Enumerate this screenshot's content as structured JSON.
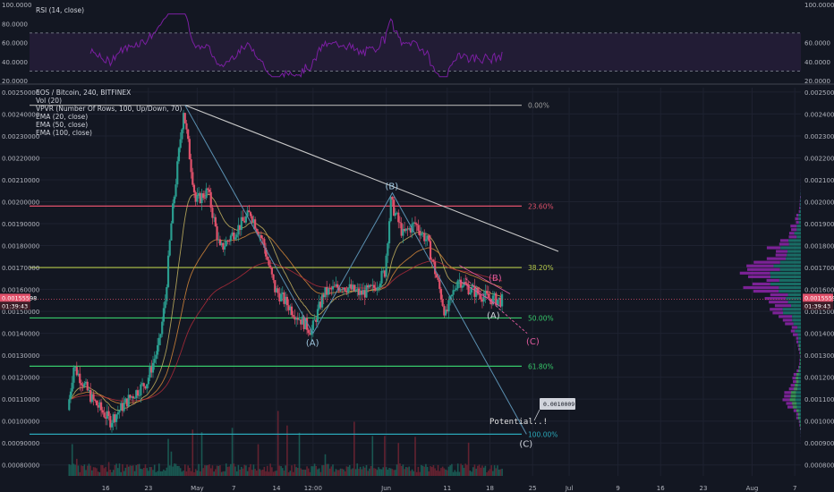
{
  "colors": {
    "background": "#131722",
    "grid": "#1e2230",
    "separator": "#2a2e39",
    "rsi": "#7b1fa2",
    "rsi_band": "#2a1f3d",
    "up": "#2a9d8f",
    "down": "#e0516b",
    "ema20": "#c8b560",
    "ema50": "#d98a3a",
    "ema100": "#b22b3a",
    "trend_white": "#c8c8c8",
    "wave_blue": "#5a8fb0",
    "wave_pink": "#e05a9e",
    "vol_up": "#1b5e57",
    "vol_down": "#6b2432"
  },
  "rsi_panel": {
    "title": "RSI (14, close)",
    "ticks": [
      "100.0000",
      "80.0000",
      "60.0000",
      "40.0000",
      "20.0000"
    ],
    "ticks_right": [
      "100.0000",
      "60.0000",
      "40.0000",
      "20.0000"
    ]
  },
  "main_panel": {
    "legend": [
      "EOS / Bitcoin, 240, BITFINEX",
      "Vol (20)",
      "VPVR (Number Of Rows, 100, Up/Down, 70)",
      "EMA (20, close)",
      "EMA (50, close)",
      "EMA (100, close)"
    ],
    "price_ticks": [
      "0.00250000",
      "0.00240000",
      "0.00230000",
      "0.00220000",
      "0.00210000",
      "0.00200000",
      "0.00190000",
      "0.00180000",
      "0.00170000",
      "0.00160000",
      "0.00150000",
      "0.00140000",
      "0.00130000",
      "0.00120000",
      "0.00110000",
      "0.00100000",
      "0.00090000",
      "0.00080000"
    ],
    "last_price": "0.00155598",
    "countdown": "01:39:43",
    "tooltip_value": "0.00100091",
    "potential_label": "Potential..!"
  },
  "fibonacci": [
    {
      "label": "0.00%",
      "price": 0.00244,
      "color": "#9e9e9e"
    },
    {
      "label": "23.60%",
      "price": 0.00198,
      "color": "#e0516b"
    },
    {
      "label": "38.20%",
      "price": 0.0017,
      "color": "#b5c94b"
    },
    {
      "label": "50.00%",
      "price": 0.00147,
      "color": "#37c96a"
    },
    {
      "label": "61.80%",
      "price": 0.00125,
      "color": "#37c96a"
    },
    {
      "label": "100.00%",
      "price": 0.00094,
      "color": "#2aa7b8"
    }
  ],
  "waves": {
    "blue": [
      {
        "label": "(A)",
        "date": "May 20",
        "price": 0.0014
      },
      {
        "label": "(B)",
        "date": "Jun 2",
        "price": 0.00204
      },
      {
        "label": "(C)",
        "date": "Jun 24",
        "price": 0.00094
      }
    ],
    "pink": [
      {
        "label": "(B)",
        "date": "Jun 17",
        "price": 0.00161
      },
      {
        "label": "(A)",
        "date": "Jun 17",
        "price": 0.0015
      },
      {
        "label": "(C)",
        "date": "Jun 20",
        "price": 0.00138
      }
    ]
  },
  "x_axis": {
    "labels": [
      "16",
      "23",
      "May",
      "7",
      "14",
      "12:00",
      "Jun",
      "11",
      "18",
      "25",
      "Jul",
      "9",
      "16",
      "23",
      "Aug",
      "7"
    ]
  },
  "chart_data": {
    "type": "candlestick",
    "symbol": "EOS / Bitcoin",
    "timeframe": "240",
    "exchange": "BITFINEX",
    "x_start": "Apr 10",
    "x_end": "Jun 20",
    "ylim": [
      0.00075,
      0.00252
    ],
    "key_points": [
      {
        "date": "Apr 10",
        "price": 0.00105
      },
      {
        "date": "Apr 11",
        "price": 0.00125
      },
      {
        "date": "Apr 14",
        "price": 0.0011
      },
      {
        "date": "Apr 17",
        "price": 0.001
      },
      {
        "date": "Apr 20",
        "price": 0.0011
      },
      {
        "date": "Apr 23",
        "price": 0.00118
      },
      {
        "date": "Apr 25",
        "price": 0.00135
      },
      {
        "date": "Apr 26",
        "price": 0.00155
      },
      {
        "date": "Apr 27",
        "price": 0.0019
      },
      {
        "date": "Apr 29",
        "price": 0.00242
      },
      {
        "date": "May 1",
        "price": 0.002
      },
      {
        "date": "May 3",
        "price": 0.00205
      },
      {
        "date": "May 5",
        "price": 0.00178
      },
      {
        "date": "May 7",
        "price": 0.00185
      },
      {
        "date": "May 10",
        "price": 0.00195
      },
      {
        "date": "May 12",
        "price": 0.00182
      },
      {
        "date": "May 14",
        "price": 0.0016
      },
      {
        "date": "May 17",
        "price": 0.0015
      },
      {
        "date": "May 20",
        "price": 0.00141
      },
      {
        "date": "May 22",
        "price": 0.00158
      },
      {
        "date": "May 25",
        "price": 0.00162
      },
      {
        "date": "May 28",
        "price": 0.00158
      },
      {
        "date": "May 30",
        "price": 0.0016
      },
      {
        "date": "Jun 1",
        "price": 0.00168
      },
      {
        "date": "Jun 2",
        "price": 0.002
      },
      {
        "date": "Jun 4",
        "price": 0.00185
      },
      {
        "date": "Jun 6",
        "price": 0.0019
      },
      {
        "date": "Jun 8",
        "price": 0.00182
      },
      {
        "date": "Jun 10",
        "price": 0.0016
      },
      {
        "date": "Jun 11",
        "price": 0.00148
      },
      {
        "date": "Jun 13",
        "price": 0.00165
      },
      {
        "date": "Jun 15",
        "price": 0.0016
      },
      {
        "date": "Jun 18",
        "price": 0.00156
      },
      {
        "date": "Jun 20",
        "price": 0.00155
      }
    ]
  }
}
